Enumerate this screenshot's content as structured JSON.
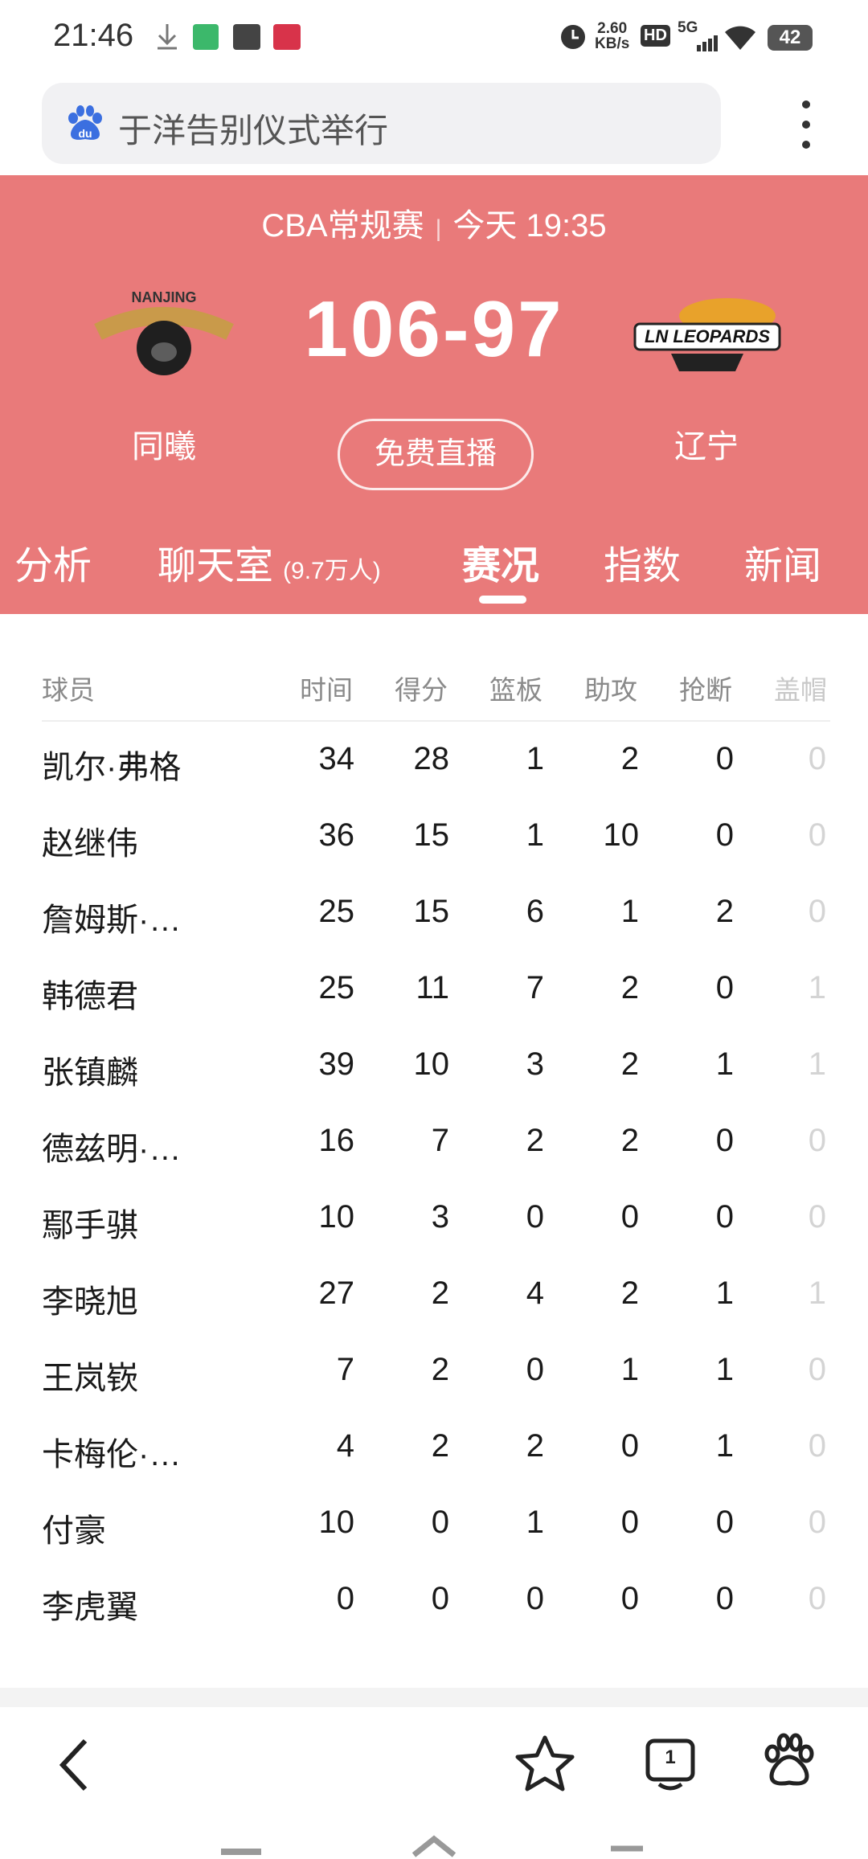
{
  "status_bar": {
    "time": "21:46",
    "speed": "2.60",
    "speed_unit": "KB/s",
    "hd": "HD",
    "network": "5G",
    "battery": "42"
  },
  "search": {
    "query": "于洋告别仪式举行"
  },
  "match": {
    "league": "CBA常规赛",
    "time": "今天 19:35",
    "score": "106-97",
    "home": {
      "name": "同曦",
      "logo_text": "NANJING"
    },
    "away": {
      "name": "辽宁",
      "logo_text": "LN LEOPARDS"
    },
    "live_button": "免费直播"
  },
  "tabs": [
    {
      "label": "分析"
    },
    {
      "label": "聊天室",
      "note": "(9.7万人)"
    },
    {
      "label": "赛况"
    },
    {
      "label": "指数"
    },
    {
      "label": "新闻"
    }
  ],
  "active_tab": 2,
  "table": {
    "headers": [
      "球员",
      "时间",
      "得分",
      "篮板",
      "助攻",
      "抢断",
      "盖帽"
    ],
    "rows": [
      [
        "凯尔·弗格",
        "34",
        "28",
        "1",
        "2",
        "0",
        "0"
      ],
      [
        "赵继伟",
        "36",
        "15",
        "1",
        "10",
        "0",
        "0"
      ],
      [
        "詹姆斯·…",
        "25",
        "15",
        "6",
        "1",
        "2",
        "0"
      ],
      [
        "韩德君",
        "25",
        "11",
        "7",
        "2",
        "0",
        "1"
      ],
      [
        "张镇麟",
        "39",
        "10",
        "3",
        "2",
        "1",
        "1"
      ],
      [
        "德兹明·…",
        "16",
        "7",
        "2",
        "2",
        "0",
        "0"
      ],
      [
        "鄢手骐",
        "10",
        "3",
        "0",
        "0",
        "0",
        "0"
      ],
      [
        "李晓旭",
        "27",
        "2",
        "4",
        "2",
        "1",
        "1"
      ],
      [
        "王岚嵚",
        "7",
        "2",
        "0",
        "1",
        "1",
        "0"
      ],
      [
        "卡梅伦·…",
        "4",
        "2",
        "2",
        "0",
        "1",
        "0"
      ],
      [
        "付豪",
        "10",
        "0",
        "1",
        "0",
        "0",
        "0"
      ],
      [
        "李虎翼",
        "0",
        "0",
        "0",
        "0",
        "0",
        "0"
      ]
    ]
  }
}
